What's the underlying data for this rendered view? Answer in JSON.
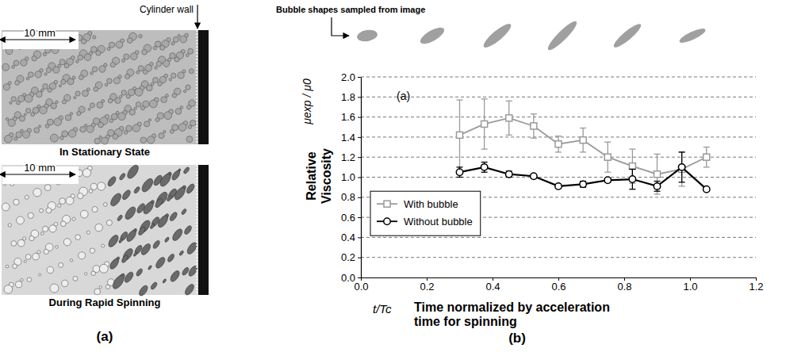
{
  "chart_data": {
    "type": "line",
    "header": "Bubble shapes sampled from image",
    "annotation": "(a)",
    "panel_label": "(b)",
    "xlabel_symbol": "t/Tc",
    "xlabel": "Time normalized by acceleration time for spinning",
    "ylabel_symbol": "μexp / μ0",
    "ylabel": "Relative Viscosity",
    "x": [
      0.3,
      0.375,
      0.45,
      0.525,
      0.6,
      0.675,
      0.75,
      0.825,
      0.9,
      0.975,
      1.05
    ],
    "series": [
      {
        "name": "With bubble",
        "color": "#9a9a9a",
        "marker": "square",
        "values": [
          1.42,
          1.53,
          1.59,
          1.51,
          1.33,
          1.37,
          1.2,
          1.11,
          1.03,
          1.08,
          1.2
        ],
        "errors": [
          0.35,
          0.25,
          0.17,
          0.12,
          0.08,
          0.12,
          0.15,
          0.17,
          0.2,
          0.17,
          0.1
        ]
      },
      {
        "name": "Without bubble",
        "color": "#000000",
        "marker": "circle",
        "values": [
          1.05,
          1.1,
          1.03,
          1.01,
          0.91,
          0.93,
          0.97,
          0.98,
          0.91,
          1.1,
          0.88
        ],
        "errors": [
          0.05,
          0.05,
          0.03,
          0.02,
          0.02,
          0.03,
          0.02,
          0.1,
          0.05,
          0.15,
          0.01
        ]
      }
    ],
    "xlim": [
      0,
      1.2
    ],
    "ylim": [
      0,
      2
    ],
    "xticks": [
      {
        "value": 0,
        "label": "0.0"
      },
      0.2,
      0.4,
      0.6,
      0.8,
      {
        "value": 1,
        "label": "1.0"
      },
      1.2
    ],
    "yticks": [
      {
        "value": 0,
        "label": "0.0"
      },
      0.2,
      0.4,
      0.6,
      0.8,
      {
        "value": 1,
        "label": "1.0"
      },
      1.2,
      1.4,
      1.6,
      1.8,
      {
        "value": 2,
        "label": "2.0"
      }
    ],
    "grid": true,
    "legend": "left"
  },
  "figure": {
    "panel_label": "(a)",
    "scale_label": "10 mm",
    "wall_label": "Cylinder wall",
    "captions": [
      "In Stationary State",
      "During Rapid Spinning"
    ]
  }
}
